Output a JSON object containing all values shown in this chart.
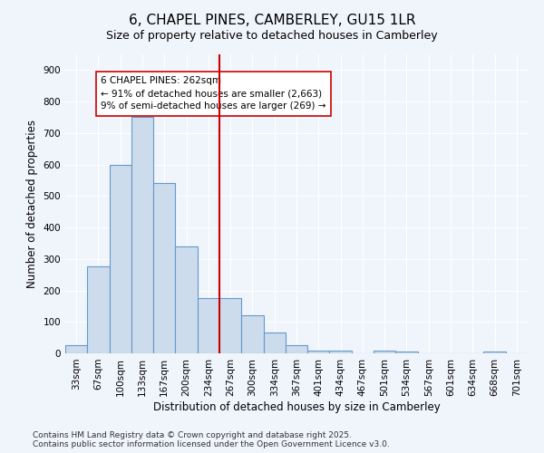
{
  "title": "6, CHAPEL PINES, CAMBERLEY, GU15 1LR",
  "subtitle": "Size of property relative to detached houses in Camberley",
  "xlabel": "Distribution of detached houses by size in Camberley",
  "ylabel": "Number of detached properties",
  "categories": [
    "33sqm",
    "67sqm",
    "100sqm",
    "133sqm",
    "167sqm",
    "200sqm",
    "234sqm",
    "267sqm",
    "300sqm",
    "334sqm",
    "367sqm",
    "401sqm",
    "434sqm",
    "467sqm",
    "501sqm",
    "534sqm",
    "567sqm",
    "601sqm",
    "634sqm",
    "668sqm",
    "701sqm"
  ],
  "values": [
    25,
    275,
    600,
    750,
    540,
    340,
    175,
    175,
    120,
    65,
    25,
    10,
    10,
    0,
    10,
    5,
    0,
    0,
    0,
    5,
    0
  ],
  "bar_color": "#ccdcec",
  "bar_edge_color": "#6699cc",
  "vline_index": 7,
  "vline_color": "#cc0000",
  "annotation_text": "6 CHAPEL PINES: 262sqm\n← 91% of detached houses are smaller (2,663)\n9% of semi-detached houses are larger (269) →",
  "annotation_box_facecolor": "#ffffff",
  "annotation_box_edgecolor": "#cc0000",
  "ylim": [
    0,
    950
  ],
  "yticks": [
    0,
    100,
    200,
    300,
    400,
    500,
    600,
    700,
    800,
    900
  ],
  "bg_color": "#f0f4fb",
  "footer_text": "Contains HM Land Registry data © Crown copyright and database right 2025.\nContains public sector information licensed under the Open Government Licence v3.0.",
  "title_fontsize": 11,
  "subtitle_fontsize": 9,
  "axis_label_fontsize": 8.5,
  "tick_fontsize": 7.5,
  "annot_fontsize": 7.5,
  "footer_fontsize": 6.5
}
